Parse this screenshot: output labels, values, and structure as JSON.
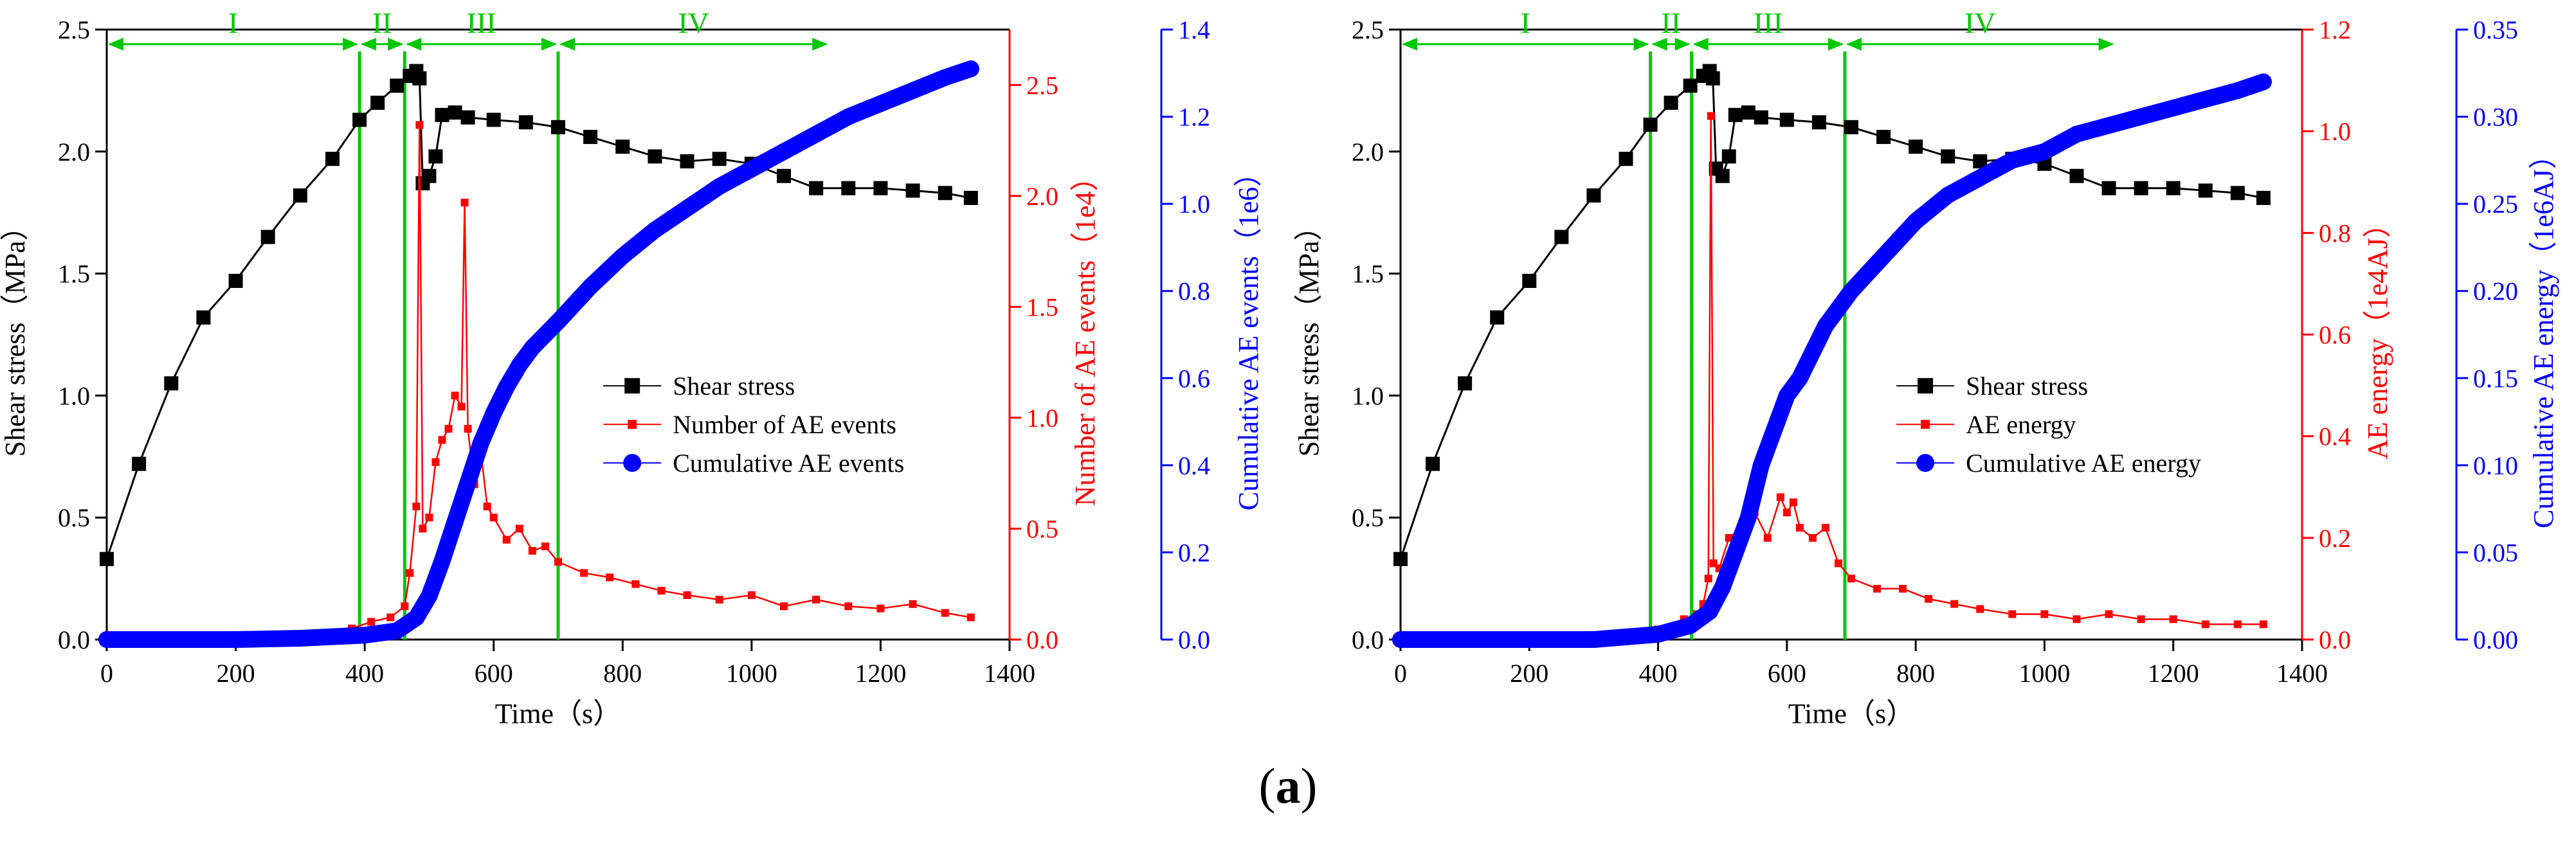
{
  "caption": {
    "open": "(",
    "letter": "a",
    "close": ")"
  },
  "colors": {
    "shear": "#000000",
    "ae": "#ff0000",
    "cum": "#0000ff",
    "stage": "#00c800"
  },
  "chart_data": [
    {
      "type": "line",
      "panel": "left",
      "xlabel": "Time（s）",
      "ylabel_left": "Shear stress（MPa）",
      "ylabel_right1": "Number of AE events（1e4）",
      "ylabel_right2": "Cumulative AE events（1e6）",
      "xlim": [
        0,
        1400
      ],
      "xticks": [
        "0",
        "200",
        "400",
        "600",
        "800",
        "1000",
        "1200",
        "1400"
      ],
      "ylim_left": [
        0,
        2.5
      ],
      "yticks_left": [
        "0.0",
        "0.5",
        "1.0",
        "1.5",
        "2.0",
        "2.5"
      ],
      "ylim_right1": [
        0,
        2.75
      ],
      "yticks_right1": [
        "0.0",
        "0.5",
        "1.0",
        "1.5",
        "2.0",
        "2.5"
      ],
      "ylim_right2": [
        0,
        1.4
      ],
      "yticks_right2": [
        "0.0",
        "0.2",
        "0.4",
        "0.6",
        "0.8",
        "1.0",
        "1.2",
        "1.4"
      ],
      "legend": [
        "Shear stress",
        "Number of AE events",
        "Cumulative AE events"
      ],
      "legend_position": "center-right",
      "stage_labels": [
        "I",
        "II",
        "III",
        "IV"
      ],
      "stage_boundaries": [
        0,
        392,
        462,
        700,
        1120
      ],
      "stage_arrow_y": 2.44,
      "peak_stress": 2.33,
      "series": [
        {
          "name": "Shear stress",
          "axis": "left",
          "x": [
            0,
            50,
            100,
            150,
            200,
            250,
            300,
            350,
            392,
            420,
            450,
            470,
            480,
            485,
            490,
            500,
            510,
            520,
            540,
            560,
            600,
            650,
            700,
            750,
            800,
            850,
            900,
            950,
            1000,
            1050,
            1100,
            1150,
            1200,
            1250,
            1300,
            1340
          ],
          "y": [
            0.33,
            0.72,
            1.05,
            1.32,
            1.47,
            1.65,
            1.82,
            1.97,
            2.13,
            2.2,
            2.27,
            2.31,
            2.33,
            2.3,
            1.87,
            1.9,
            1.98,
            2.15,
            2.16,
            2.14,
            2.13,
            2.12,
            2.1,
            2.06,
            2.02,
            1.98,
            1.96,
            1.97,
            1.95,
            1.9,
            1.85,
            1.85,
            1.85,
            1.84,
            1.83,
            1.81
          ]
        },
        {
          "name": "Number of AE events",
          "axis": "right1",
          "x": [
            300,
            340,
            380,
            410,
            440,
            462,
            470,
            480,
            485,
            490,
            500,
            510,
            520,
            530,
            540,
            550,
            555,
            560,
            570,
            580,
            590,
            600,
            620,
            640,
            660,
            680,
            700,
            740,
            780,
            820,
            860,
            900,
            950,
            1000,
            1050,
            1100,
            1150,
            1200,
            1250,
            1300,
            1340
          ],
          "y": [
            0.01,
            0.03,
            0.05,
            0.08,
            0.1,
            0.15,
            0.3,
            0.6,
            2.32,
            0.5,
            0.55,
            0.8,
            0.9,
            0.95,
            1.1,
            1.05,
            1.97,
            0.95,
            0.7,
            0.85,
            0.6,
            0.55,
            0.45,
            0.5,
            0.4,
            0.42,
            0.35,
            0.3,
            0.28,
            0.25,
            0.22,
            0.2,
            0.18,
            0.2,
            0.15,
            0.18,
            0.15,
            0.14,
            0.16,
            0.12,
            0.1
          ]
        },
        {
          "name": "Cumulative AE events",
          "axis": "right2",
          "x": [
            0,
            200,
            300,
            400,
            450,
            480,
            500,
            520,
            540,
            560,
            580,
            600,
            620,
            640,
            660,
            680,
            700,
            750,
            800,
            850,
            900,
            950,
            1000,
            1050,
            1100,
            1150,
            1200,
            1250,
            1300,
            1340
          ],
          "y": [
            0.0,
            0.0,
            0.003,
            0.01,
            0.02,
            0.05,
            0.1,
            0.18,
            0.27,
            0.36,
            0.45,
            0.52,
            0.58,
            0.63,
            0.67,
            0.7,
            0.73,
            0.81,
            0.88,
            0.94,
            0.99,
            1.04,
            1.08,
            1.12,
            1.16,
            1.2,
            1.23,
            1.26,
            1.29,
            1.31
          ]
        }
      ]
    },
    {
      "type": "line",
      "panel": "right",
      "xlabel": "Time（s）",
      "ylabel_left": "Shear stress（MPa）",
      "ylabel_right1": "AE energy（1e4AJ）",
      "ylabel_right2": "Cumulative AE energy（1e6AJ）",
      "xlim": [
        0,
        1400
      ],
      "xticks": [
        "0",
        "200",
        "400",
        "600",
        "800",
        "1000",
        "1200",
        "1400"
      ],
      "ylim_left": [
        0,
        2.5
      ],
      "yticks_left": [
        "0.0",
        "0.5",
        "1.0",
        "1.5",
        "2.0",
        "2.5"
      ],
      "ylim_right1": [
        0,
        1.2
      ],
      "yticks_right1": [
        "0.0",
        "0.2",
        "0.4",
        "0.6",
        "0.8",
        "1.0",
        "1.2"
      ],
      "ylim_right2": [
        0,
        0.35
      ],
      "yticks_right2": [
        "0.00",
        "0.05",
        "0.10",
        "0.15",
        "0.20",
        "0.25",
        "0.30",
        "0.35"
      ],
      "legend": [
        "Shear stress",
        "AE energy",
        "Cumulative AE energy"
      ],
      "legend_position": "center-right",
      "stage_labels": [
        "I",
        "II",
        "III",
        "IV"
      ],
      "stage_boundaries": [
        0,
        388,
        452,
        690,
        1110
      ],
      "stage_arrow_y": 2.44,
      "peak_stress": 2.33,
      "series": [
        {
          "name": "Shear stress",
          "axis": "left",
          "x": [
            0,
            50,
            100,
            150,
            200,
            250,
            300,
            350,
            388,
            420,
            450,
            470,
            480,
            485,
            490,
            500,
            510,
            520,
            540,
            560,
            600,
            650,
            700,
            750,
            800,
            850,
            900,
            950,
            1000,
            1050,
            1100,
            1150,
            1200,
            1250,
            1300,
            1340
          ],
          "y": [
            0.33,
            0.72,
            1.05,
            1.32,
            1.47,
            1.65,
            1.82,
            1.97,
            2.11,
            2.2,
            2.27,
            2.31,
            2.33,
            2.3,
            1.93,
            1.9,
            1.98,
            2.15,
            2.16,
            2.14,
            2.13,
            2.12,
            2.1,
            2.06,
            2.02,
            1.98,
            1.96,
            1.97,
            1.95,
            1.9,
            1.85,
            1.85,
            1.85,
            1.84,
            1.83,
            1.81
          ]
        },
        {
          "name": "AE energy",
          "axis": "right1",
          "x": [
            300,
            360,
            400,
            440,
            460,
            470,
            478,
            482,
            486,
            495,
            510,
            530,
            550,
            570,
            590,
            600,
            610,
            620,
            640,
            660,
            680,
            700,
            740,
            780,
            820,
            860,
            900,
            950,
            1000,
            1050,
            1100,
            1150,
            1200,
            1250,
            1300,
            1340
          ],
          "y": [
            0.005,
            0.01,
            0.02,
            0.04,
            0.05,
            0.07,
            0.12,
            1.03,
            0.15,
            0.14,
            0.2,
            0.22,
            0.25,
            0.2,
            0.28,
            0.25,
            0.27,
            0.22,
            0.2,
            0.22,
            0.15,
            0.12,
            0.1,
            0.1,
            0.08,
            0.07,
            0.06,
            0.05,
            0.05,
            0.04,
            0.05,
            0.04,
            0.04,
            0.03,
            0.03,
            0.03
          ]
        },
        {
          "name": "Cumulative AE energy",
          "axis": "right2",
          "x": [
            0,
            300,
            400,
            450,
            480,
            500,
            520,
            540,
            560,
            580,
            600,
            620,
            640,
            660,
            680,
            700,
            750,
            800,
            850,
            900,
            950,
            1000,
            1050,
            1100,
            1150,
            1200,
            1250,
            1300,
            1340
          ],
          "y": [
            0.0,
            0.0,
            0.003,
            0.008,
            0.016,
            0.03,
            0.05,
            0.07,
            0.1,
            0.12,
            0.14,
            0.15,
            0.165,
            0.18,
            0.19,
            0.2,
            0.22,
            0.24,
            0.255,
            0.265,
            0.275,
            0.28,
            0.29,
            0.295,
            0.3,
            0.305,
            0.31,
            0.315,
            0.32
          ]
        }
      ]
    }
  ]
}
